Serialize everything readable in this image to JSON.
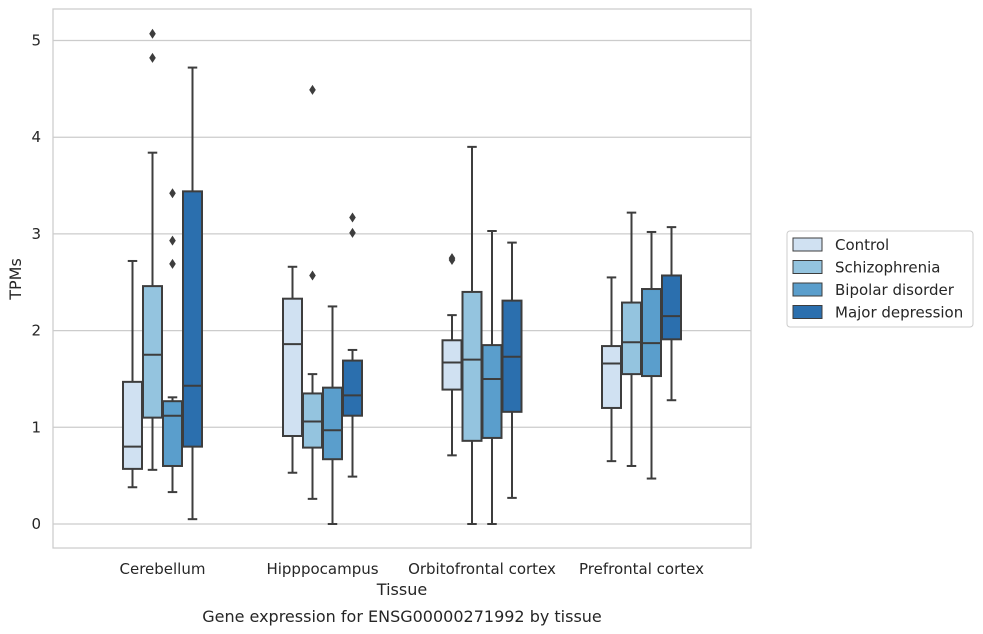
{
  "chart_data": {
    "type": "box",
    "title": "Gene expression for ENSG00000271992 by tissue",
    "xlabel": "Tissue",
    "ylabel": "TPMs",
    "ylim": [
      -0.25,
      5.33
    ],
    "yticks": [
      0,
      1,
      2,
      3,
      4,
      5
    ],
    "grid": true,
    "legend_position": "right",
    "categories": [
      "Cerebellum",
      "Hipppocampus",
      "Orbitofrontal cortex",
      "Prefrontal cortex"
    ],
    "series": [
      {
        "name": "Control",
        "color": "#d0e1f2",
        "boxes": [
          {
            "whisker_low": 0.38,
            "q1": 0.57,
            "median": 0.8,
            "q3": 1.47,
            "whisker_high": 2.72,
            "outliers": []
          },
          {
            "whisker_low": 0.53,
            "q1": 0.91,
            "median": 1.86,
            "q3": 2.33,
            "whisker_high": 2.66,
            "outliers": []
          },
          {
            "whisker_low": 0.71,
            "q1": 1.39,
            "median": 1.67,
            "q3": 1.9,
            "whisker_high": 2.16,
            "outliers": [
              2.73,
              2.75
            ]
          },
          {
            "whisker_low": 0.65,
            "q1": 1.2,
            "median": 1.66,
            "q3": 1.84,
            "whisker_high": 2.55,
            "outliers": []
          }
        ]
      },
      {
        "name": "Schizophrenia",
        "color": "#94c4df",
        "boxes": [
          {
            "whisker_low": 0.56,
            "q1": 1.1,
            "median": 1.75,
            "q3": 2.46,
            "whisker_high": 3.84,
            "outliers": [
              4.82,
              5.07
            ]
          },
          {
            "whisker_low": 0.26,
            "q1": 0.79,
            "median": 1.06,
            "q3": 1.35,
            "whisker_high": 1.55,
            "outliers": [
              2.57,
              4.49
            ]
          },
          {
            "whisker_low": 0.0,
            "q1": 0.86,
            "median": 1.7,
            "q3": 2.4,
            "whisker_high": 3.9,
            "outliers": []
          },
          {
            "whisker_low": 0.6,
            "q1": 1.55,
            "median": 1.88,
            "q3": 2.29,
            "whisker_high": 3.22,
            "outliers": []
          }
        ]
      },
      {
        "name": "Bipolar disorder",
        "color": "#5a9ecc",
        "boxes": [
          {
            "whisker_low": 0.33,
            "q1": 0.6,
            "median": 1.12,
            "q3": 1.27,
            "whisker_high": 1.31,
            "outliers": [
              2.69,
              2.93,
              3.42
            ]
          },
          {
            "whisker_low": 0.0,
            "q1": 0.67,
            "median": 0.97,
            "q3": 1.41,
            "whisker_high": 2.25,
            "outliers": []
          },
          {
            "whisker_low": 0.0,
            "q1": 0.89,
            "median": 1.5,
            "q3": 1.85,
            "whisker_high": 3.03,
            "outliers": []
          },
          {
            "whisker_low": 0.47,
            "q1": 1.53,
            "median": 1.87,
            "q3": 2.43,
            "whisker_high": 3.02,
            "outliers": []
          }
        ]
      },
      {
        "name": "Major depression",
        "color": "#2b6fae",
        "boxes": [
          {
            "whisker_low": 0.05,
            "q1": 0.8,
            "median": 1.43,
            "q3": 3.44,
            "whisker_high": 4.72,
            "outliers": []
          },
          {
            "whisker_low": 0.49,
            "q1": 1.12,
            "median": 1.33,
            "q3": 1.69,
            "whisker_high": 1.8,
            "outliers": [
              3.01,
              3.17
            ]
          },
          {
            "whisker_low": 0.27,
            "q1": 1.16,
            "median": 1.73,
            "q3": 2.31,
            "whisker_high": 2.91,
            "outliers": []
          },
          {
            "whisker_low": 1.28,
            "q1": 1.91,
            "median": 2.15,
            "q3": 2.57,
            "whisker_high": 3.07,
            "outliers": []
          }
        ]
      }
    ]
  }
}
